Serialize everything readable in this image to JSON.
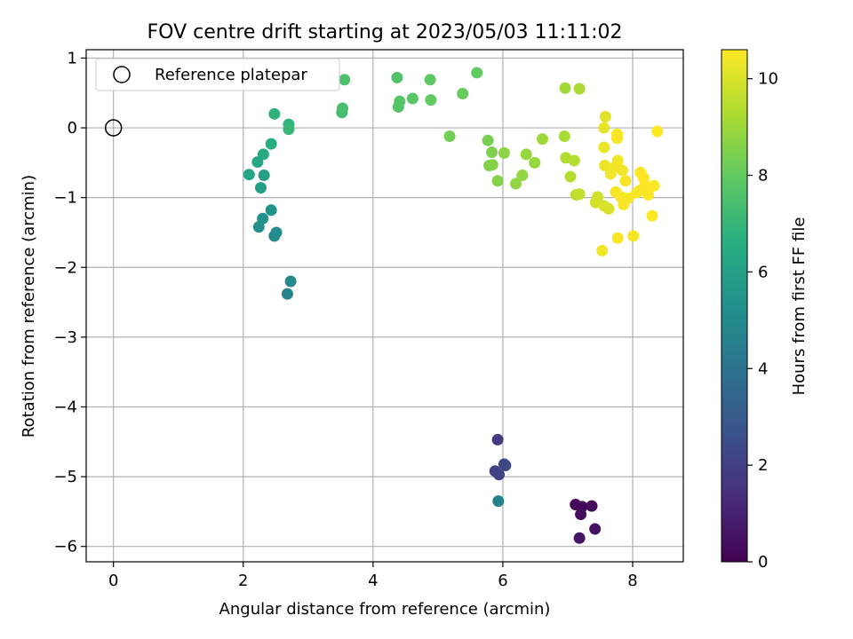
{
  "chart_data": {
    "type": "scatter",
    "title": "FOV centre drift starting at 2023/05/03 11:11:02",
    "xlabel": "Angular distance from reference (arcmin)",
    "ylabel": "Rotation from reference (arcmin)",
    "xlim": [
      -0.42,
      8.78
    ],
    "ylim": [
      -6.22,
      1.12
    ],
    "xticks": [
      0,
      2,
      4,
      6,
      8
    ],
    "yticks": [
      1,
      0,
      -1,
      -2,
      -3,
      -4,
      -5,
      -6
    ],
    "xtick_labels": [
      "0",
      "2",
      "4",
      "6",
      "8"
    ],
    "ytick_labels": [
      "1",
      "0",
      "−1",
      "−2",
      "−3",
      "−4",
      "−5",
      "−6"
    ],
    "grid": true,
    "legend": {
      "position": "top-left",
      "entries": [
        "Reference platepar"
      ]
    },
    "reference_point": {
      "x": 0,
      "y": 0,
      "label": "Reference platepar"
    },
    "colorbar": {
      "label": "Hours from first FF file",
      "range": [
        0,
        10.6
      ],
      "ticks": [
        0,
        2,
        4,
        6,
        8,
        10
      ],
      "tick_labels": [
        "0",
        "2",
        "4",
        "6",
        "8",
        "10"
      ],
      "colormap": "viridis"
    },
    "points": [
      {
        "x": 7.12,
        "y": -5.4,
        "c": 0.1
      },
      {
        "x": 7.22,
        "y": -5.43,
        "c": 0.2
      },
      {
        "x": 7.37,
        "y": -5.42,
        "c": 0.3
      },
      {
        "x": 7.2,
        "y": -5.54,
        "c": 0.35
      },
      {
        "x": 7.42,
        "y": -5.75,
        "c": 0.5
      },
      {
        "x": 7.18,
        "y": -5.88,
        "c": 0.6
      },
      {
        "x": 5.92,
        "y": -4.47,
        "c": 1.8
      },
      {
        "x": 5.88,
        "y": -4.92,
        "c": 2.0
      },
      {
        "x": 5.94,
        "y": -4.97,
        "c": 2.1
      },
      {
        "x": 6.02,
        "y": -4.82,
        "c": 2.2
      },
      {
        "x": 6.04,
        "y": -4.84,
        "c": 2.3
      },
      {
        "x": 5.93,
        "y": -5.35,
        "c": 4.6
      },
      {
        "x": 2.68,
        "y": -2.38,
        "c": 4.7
      },
      {
        "x": 2.73,
        "y": -2.2,
        "c": 4.9
      },
      {
        "x": 2.48,
        "y": -1.55,
        "c": 5.0
      },
      {
        "x": 2.51,
        "y": -1.5,
        "c": 5.1
      },
      {
        "x": 2.24,
        "y": -1.42,
        "c": 5.2
      },
      {
        "x": 2.3,
        "y": -1.3,
        "c": 5.3
      },
      {
        "x": 2.43,
        "y": -1.18,
        "c": 5.4
      },
      {
        "x": 2.27,
        "y": -0.86,
        "c": 5.9
      },
      {
        "x": 2.32,
        "y": -0.68,
        "c": 6.0
      },
      {
        "x": 2.09,
        "y": -0.67,
        "c": 6.2
      },
      {
        "x": 2.22,
        "y": -0.49,
        "c": 6.3
      },
      {
        "x": 2.31,
        "y": -0.38,
        "c": 6.4
      },
      {
        "x": 2.43,
        "y": -0.23,
        "c": 6.6
      },
      {
        "x": 2.7,
        "y": 0.05,
        "c": 6.9
      },
      {
        "x": 2.7,
        "y": -0.02,
        "c": 7.0
      },
      {
        "x": 2.48,
        "y": 0.2,
        "c": 6.8
      },
      {
        "x": 3.52,
        "y": 0.22,
        "c": 7.3
      },
      {
        "x": 3.53,
        "y": 0.28,
        "c": 7.4
      },
      {
        "x": 3.56,
        "y": 0.69,
        "c": 7.5
      },
      {
        "x": 4.37,
        "y": 0.72,
        "c": 7.6
      },
      {
        "x": 4.39,
        "y": 0.3,
        "c": 7.7
      },
      {
        "x": 4.41,
        "y": 0.38,
        "c": 7.7
      },
      {
        "x": 4.61,
        "y": 0.42,
        "c": 7.8
      },
      {
        "x": 4.88,
        "y": 0.69,
        "c": 7.9
      },
      {
        "x": 4.89,
        "y": 0.4,
        "c": 8.0
      },
      {
        "x": 5.38,
        "y": 0.49,
        "c": 8.1
      },
      {
        "x": 5.6,
        "y": 0.79,
        "c": 8.0
      },
      {
        "x": 5.18,
        "y": -0.12,
        "c": 8.3
      },
      {
        "x": 5.77,
        "y": -0.18,
        "c": 8.4
      },
      {
        "x": 5.83,
        "y": -0.35,
        "c": 8.5
      },
      {
        "x": 5.79,
        "y": -0.54,
        "c": 8.5
      },
      {
        "x": 5.84,
        "y": -0.53,
        "c": 8.6
      },
      {
        "x": 5.92,
        "y": -0.76,
        "c": 8.6
      },
      {
        "x": 6.02,
        "y": -0.36,
        "c": 8.7
      },
      {
        "x": 6.2,
        "y": -0.8,
        "c": 8.8
      },
      {
        "x": 6.3,
        "y": -0.68,
        "c": 8.8
      },
      {
        "x": 6.36,
        "y": -0.38,
        "c": 8.9
      },
      {
        "x": 6.49,
        "y": -0.5,
        "c": 8.9
      },
      {
        "x": 6.61,
        "y": -0.16,
        "c": 9.0
      },
      {
        "x": 6.96,
        "y": 0.57,
        "c": 9.1
      },
      {
        "x": 7.18,
        "y": 0.56,
        "c": 9.2
      },
      {
        "x": 6.95,
        "y": -0.12,
        "c": 9.2
      },
      {
        "x": 6.97,
        "y": -0.43,
        "c": 9.3
      },
      {
        "x": 7.1,
        "y": -0.47,
        "c": 9.4
      },
      {
        "x": 7.04,
        "y": -0.7,
        "c": 9.4
      },
      {
        "x": 7.13,
        "y": -0.96,
        "c": 9.5
      },
      {
        "x": 7.18,
        "y": -0.95,
        "c": 9.6
      },
      {
        "x": 7.46,
        "y": -0.99,
        "c": 9.8
      },
      {
        "x": 7.43,
        "y": -1.07,
        "c": 9.9
      },
      {
        "x": 7.56,
        "y": -1.12,
        "c": 10.0
      },
      {
        "x": 7.63,
        "y": -1.16,
        "c": 10.0
      },
      {
        "x": 7.58,
        "y": 0.16,
        "c": 10.1
      },
      {
        "x": 7.56,
        "y": 0.0,
        "c": 10.2
      },
      {
        "x": 7.56,
        "y": -0.28,
        "c": 10.3
      },
      {
        "x": 7.57,
        "y": -0.54,
        "c": 10.3
      },
      {
        "x": 7.66,
        "y": -0.66,
        "c": 10.4
      },
      {
        "x": 7.69,
        "y": -0.58,
        "c": 10.4
      },
      {
        "x": 7.76,
        "y": -0.09,
        "c": 10.5
      },
      {
        "x": 7.76,
        "y": -0.15,
        "c": 10.5
      },
      {
        "x": 7.77,
        "y": -0.47,
        "c": 10.4
      },
      {
        "x": 7.84,
        "y": -0.61,
        "c": 10.4
      },
      {
        "x": 7.89,
        "y": -0.76,
        "c": 10.5
      },
      {
        "x": 7.74,
        "y": -0.92,
        "c": 10.5
      },
      {
        "x": 7.82,
        "y": -0.99,
        "c": 10.5
      },
      {
        "x": 7.93,
        "y": -1.01,
        "c": 10.5
      },
      {
        "x": 7.86,
        "y": -1.1,
        "c": 10.5
      },
      {
        "x": 8.06,
        "y": -0.93,
        "c": 10.5
      },
      {
        "x": 8.11,
        "y": -0.9,
        "c": 10.5
      },
      {
        "x": 8.12,
        "y": -0.64,
        "c": 10.6
      },
      {
        "x": 8.17,
        "y": -0.72,
        "c": 10.6
      },
      {
        "x": 8.19,
        "y": -0.82,
        "c": 10.6
      },
      {
        "x": 8.24,
        "y": -0.96,
        "c": 10.6
      },
      {
        "x": 8.33,
        "y": -0.83,
        "c": 10.6
      },
      {
        "x": 8.38,
        "y": -0.05,
        "c": 10.6
      },
      {
        "x": 8.3,
        "y": -1.26,
        "c": 10.6
      },
      {
        "x": 8.01,
        "y": -1.55,
        "c": 10.5
      },
      {
        "x": 7.77,
        "y": -1.58,
        "c": 10.5
      },
      {
        "x": 7.53,
        "y": -1.76,
        "c": 10.4
      }
    ]
  }
}
